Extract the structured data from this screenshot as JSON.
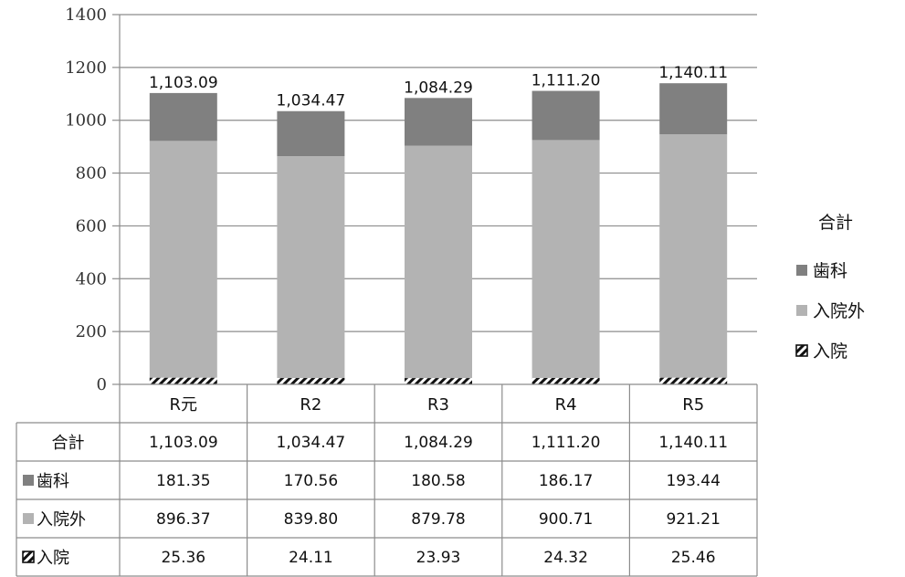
{
  "chart_data": {
    "type": "bar",
    "stacked": true,
    "categories": [
      "R元",
      "R2",
      "R3",
      "R4",
      "R5"
    ],
    "series": [
      {
        "name": "入院",
        "values": [
          25.36,
          24.11,
          23.93,
          24.32,
          25.46
        ],
        "color": "#ffffff",
        "pattern": "diagonal-hatch"
      },
      {
        "name": "入院外",
        "values": [
          896.37,
          839.8,
          879.78,
          900.71,
          921.21
        ],
        "color": "#b3b3b3"
      },
      {
        "name": "歯科",
        "values": [
          181.35,
          170.56,
          180.58,
          186.17,
          193.44
        ],
        "color": "#808080"
      }
    ],
    "totals": {
      "name": "合計",
      "values": [
        1103.09,
        1034.47,
        1084.29,
        1111.2,
        1140.11
      ]
    },
    "ylim": [
      0,
      1400
    ],
    "yticks": [
      0,
      200,
      400,
      600,
      800,
      1000,
      1200,
      1400
    ],
    "grid": true,
    "legend_position": "right",
    "data_table": true
  },
  "labels": {
    "totals_text": [
      "1,103.09",
      "1,034.47",
      "1,084.29",
      "1,111.20",
      "1,140.11"
    ],
    "table_rows": [
      {
        "name": "合計",
        "marker": "none",
        "cells": [
          "1,103.09",
          "1,034.47",
          "1,084.29",
          "1,111.20",
          "1,140.11"
        ]
      },
      {
        "name": "歯科",
        "marker": "dark",
        "cells": [
          "181.35",
          "170.56",
          "180.58",
          "186.17",
          "193.44"
        ]
      },
      {
        "name": "入院外",
        "marker": "light",
        "cells": [
          "896.37",
          "839.80",
          "879.78",
          "900.71",
          "921.21"
        ]
      },
      {
        "name": "入院",
        "marker": "hatch",
        "cells": [
          "25.36",
          "24.11",
          "23.93",
          "24.32",
          "25.46"
        ]
      }
    ]
  },
  "legend": [
    {
      "name": "合計",
      "marker": "none"
    },
    {
      "name": "歯科",
      "marker": "dark"
    },
    {
      "name": "入院外",
      "marker": "light"
    },
    {
      "name": "入院",
      "marker": "hatch"
    }
  ]
}
